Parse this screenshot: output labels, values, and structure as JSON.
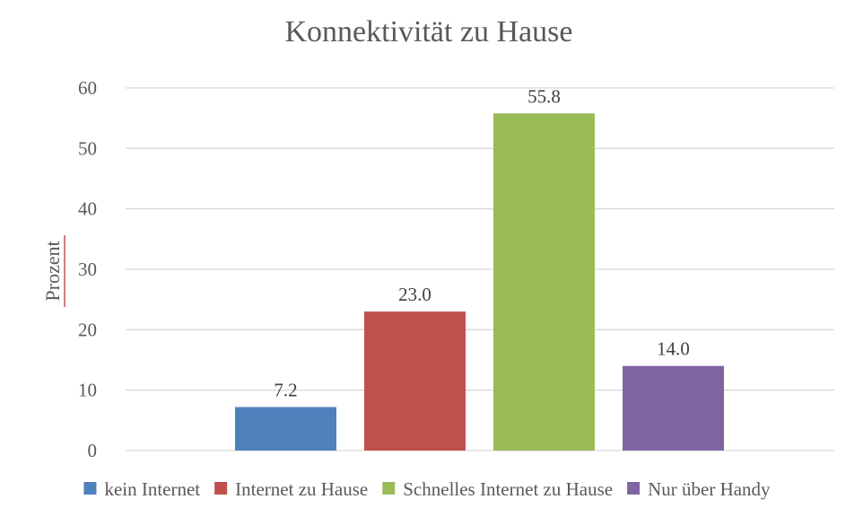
{
  "chart_data": {
    "type": "bar",
    "title": "Konnektivität zu Hause",
    "ylabel": "Prozent",
    "xlabel": "",
    "ylim": [
      0,
      60
    ],
    "yticks": [
      0,
      10,
      20,
      30,
      40,
      50,
      60
    ],
    "grid": true,
    "legend_position": "bottom",
    "series": [
      {
        "name": "kein Internet",
        "value": 7.2,
        "label": "7.2",
        "color": "#4f81bd"
      },
      {
        "name": "Internet zu Hause",
        "value": 23.0,
        "label": "23.0",
        "color": "#c0504d"
      },
      {
        "name": "Schnelles Internet zu Hause",
        "value": 55.8,
        "label": "55.8",
        "color": "#9bbb59"
      },
      {
        "name": "Nur über Handy",
        "value": 14.0,
        "label": "14.0",
        "color": "#8064a2"
      }
    ]
  }
}
